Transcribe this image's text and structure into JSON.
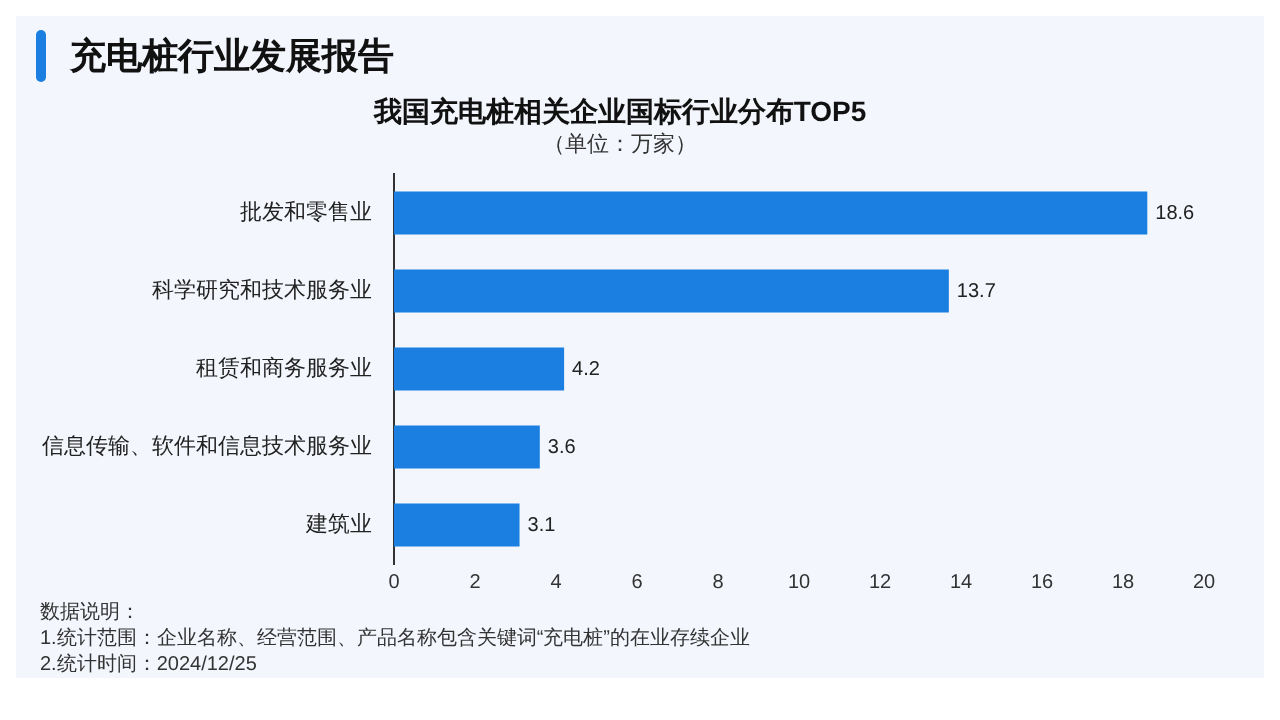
{
  "chart_data": {
    "type": "bar",
    "orientation": "horizontal",
    "title": "我国充电桩相关企业国标行业分布TOP5",
    "subtitle": "（单位：万家）",
    "categories": [
      "批发和零售业",
      "科学研究和技术服务业",
      "租赁和商务服务业",
      "信息传输、软件和信息技术服务业",
      "建筑业"
    ],
    "values": [
      18.6,
      13.7,
      4.2,
      3.6,
      3.1
    ],
    "color": "#1a7fe0",
    "data_labels": true,
    "grid": false,
    "legend": false,
    "xlim": [
      0,
      20
    ],
    "xticks": [
      0,
      2,
      4,
      6,
      8,
      10,
      12,
      14,
      16,
      18,
      20
    ],
    "annotations": [
      "充电桩行业发展报告",
      "数据说明：",
      "1.统计范围：企业名称、经营范围、产品名称包含关键词“充电桩”的在业存续企业",
      "2.统计时间：2024/12/25"
    ]
  }
}
